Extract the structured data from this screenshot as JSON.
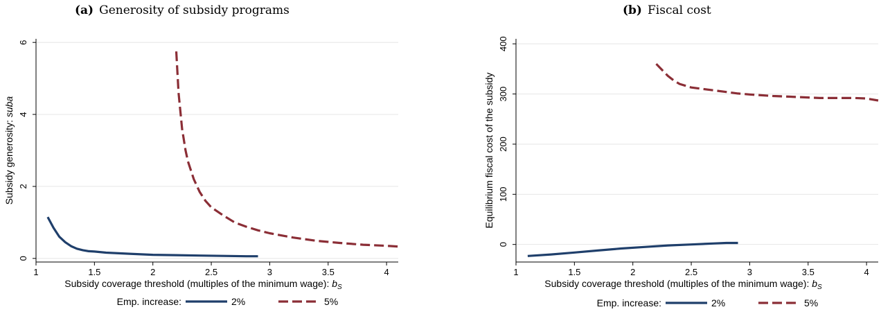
{
  "panels": {
    "a": {
      "letter": "(a)",
      "title": "Generosity of subsidy programs"
    },
    "b": {
      "letter": "(b)",
      "title": "Fiscal cost"
    }
  },
  "legend": {
    "title": "Emp. increase:"
  },
  "colors": {
    "series_2": "#1f3f6b",
    "series_5": "#8b2e36",
    "grid": "#e6e6e6"
  },
  "chart_data": [
    {
      "type": "line",
      "xlabel": "Subsidy coverage threshold (multiples of the minimum wage): ",
      "xlabel_math": "b",
      "xlabel_sub": "S",
      "ylabel": "Subsidy generosity: ",
      "ylabel_math": "suba",
      "xlim": [
        1,
        4.1
      ],
      "ylim": [
        -0.1,
        6.1
      ],
      "xticks": [
        1,
        1.5,
        2,
        2.5,
        3,
        3.5,
        4
      ],
      "xtick_labels": [
        "1",
        "1.5",
        "2",
        "2.5",
        "3",
        "3.5",
        "4"
      ],
      "yticks": [
        0,
        2,
        4,
        6
      ],
      "ytick_labels": [
        "0",
        "2",
        "4",
        "6"
      ],
      "grid": true,
      "legend_position": "bottom",
      "series": [
        {
          "name": "2%",
          "style": "solid",
          "x": [
            1.1,
            1.15,
            1.2,
            1.25,
            1.3,
            1.35,
            1.4,
            1.45,
            1.5,
            1.6,
            1.8,
            2.0,
            2.2,
            2.4,
            2.6,
            2.8,
            2.9
          ],
          "y": [
            1.15,
            0.85,
            0.6,
            0.45,
            0.34,
            0.27,
            0.23,
            0.2,
            0.19,
            0.16,
            0.13,
            0.1,
            0.09,
            0.08,
            0.07,
            0.06,
            0.06
          ]
        },
        {
          "name": "5%",
          "style": "dashed",
          "x": [
            2.2,
            2.22,
            2.25,
            2.28,
            2.3,
            2.35,
            2.4,
            2.45,
            2.5,
            2.6,
            2.7,
            2.8,
            2.9,
            3.0,
            3.2,
            3.4,
            3.6,
            3.8,
            4.0,
            4.1
          ],
          "y": [
            5.75,
            4.6,
            3.6,
            3.0,
            2.7,
            2.2,
            1.85,
            1.6,
            1.42,
            1.2,
            1.0,
            0.88,
            0.78,
            0.7,
            0.58,
            0.49,
            0.43,
            0.38,
            0.35,
            0.33
          ]
        }
      ]
    },
    {
      "type": "line",
      "xlabel": "Subsidy coverage threshold (multiples of the minimum wage): ",
      "xlabel_math": "b",
      "xlabel_sub": "S",
      "ylabel": "Equilibrium fiscal cost of the subsidy",
      "xlim": [
        1,
        4.1
      ],
      "ylim": [
        -35,
        410
      ],
      "xticks": [
        1,
        1.5,
        2,
        2.5,
        3,
        3.5,
        4
      ],
      "xtick_labels": [
        "1",
        "1.5",
        "2",
        "2.5",
        "3",
        "3.5",
        "4"
      ],
      "yticks": [
        0,
        100,
        200,
        300,
        400
      ],
      "ytick_labels": [
        "0",
        "100",
        "200",
        "300",
        "400"
      ],
      "grid": true,
      "legend_position": "bottom",
      "series": [
        {
          "name": "2%",
          "style": "solid",
          "x": [
            1.1,
            1.3,
            1.5,
            1.7,
            1.9,
            2.1,
            2.3,
            2.5,
            2.7,
            2.8,
            2.9
          ],
          "y": [
            -23,
            -20,
            -16,
            -12,
            -8,
            -5,
            -2,
            0,
            2,
            3,
            3
          ]
        },
        {
          "name": "5%",
          "style": "dashed",
          "x": [
            2.2,
            2.25,
            2.3,
            2.35,
            2.4,
            2.5,
            2.6,
            2.7,
            2.8,
            2.9,
            3.0,
            3.2,
            3.4,
            3.6,
            3.8,
            3.9,
            4.0,
            4.1
          ],
          "y": [
            360,
            348,
            336,
            327,
            320,
            313,
            310,
            307,
            304,
            301,
            299,
            296,
            294,
            292,
            292,
            292,
            291,
            287
          ]
        }
      ]
    }
  ]
}
